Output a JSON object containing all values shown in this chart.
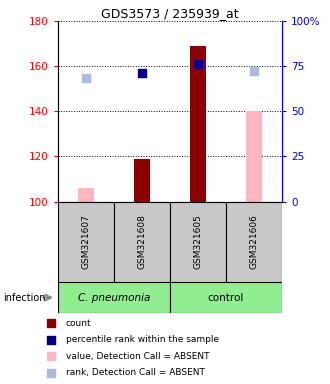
{
  "title": "GDS3573 / 235939_at",
  "samples": [
    "GSM321607",
    "GSM321608",
    "GSM321605",
    "GSM321606"
  ],
  "ylim_left": [
    100,
    180
  ],
  "ylim_right": [
    0,
    100
  ],
  "yticks_left": [
    100,
    120,
    140,
    160,
    180
  ],
  "yticks_right": [
    0,
    25,
    50,
    75,
    100
  ],
  "yticklabels_right": [
    "0",
    "25",
    "50",
    "75",
    "100%"
  ],
  "count_values": [
    null,
    119,
    169,
    null
  ],
  "rank_values": [
    null,
    157,
    161,
    null
  ],
  "absent_value_bars": [
    106,
    null,
    null,
    140
  ],
  "absent_rank_dots": [
    155,
    null,
    null,
    158
  ],
  "count_color": "#8B0000",
  "rank_color": "#00008B",
  "absent_value_color": "#FFB6C1",
  "absent_rank_color": "#AABBDD",
  "bar_width": 0.28,
  "dot_size": 40,
  "pneumonia_color": "#90EE90",
  "control_color": "#90EE90",
  "sample_bg_color": "#C8C8C8"
}
